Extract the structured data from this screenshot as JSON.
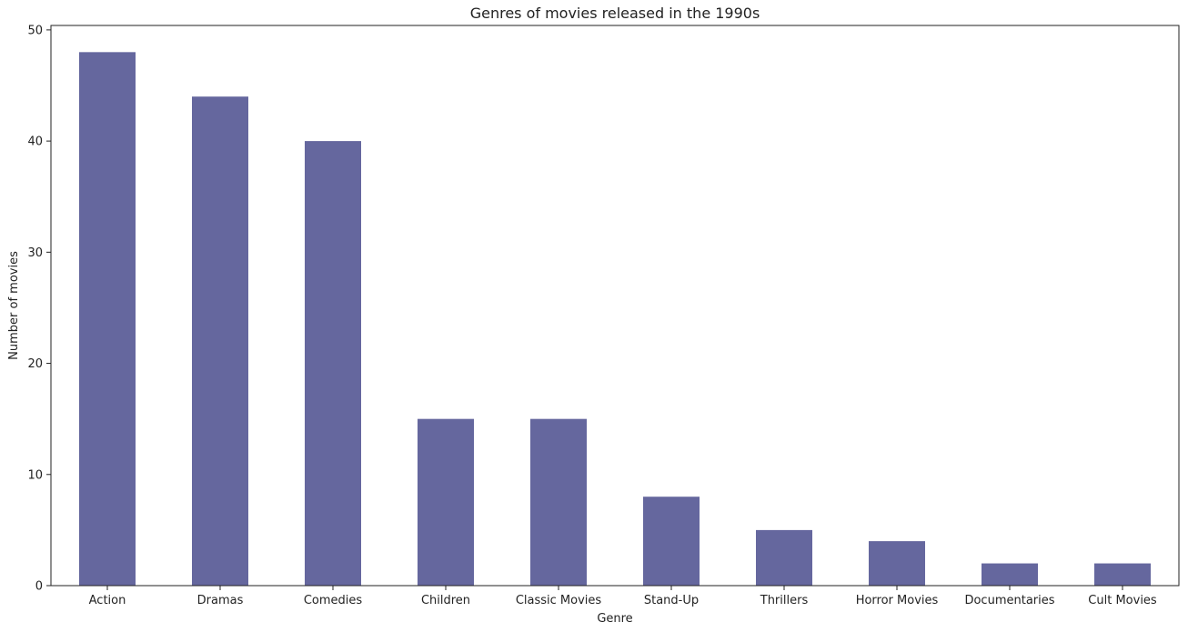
{
  "chart_data": {
    "type": "bar",
    "title": "Genres of movies released in the 1990s",
    "xlabel": "Genre",
    "ylabel": "Number of movies",
    "categories": [
      "Action",
      "Dramas",
      "Comedies",
      "Children",
      "Classic Movies",
      "Stand-Up",
      "Thrillers",
      "Horror Movies",
      "Documentaries",
      "Cult Movies"
    ],
    "values": [
      48,
      44,
      40,
      15,
      15,
      8,
      5,
      4,
      2,
      2
    ],
    "ylim": [
      0,
      50.4
    ],
    "yticks": [
      0,
      10,
      20,
      30,
      40,
      50
    ],
    "grid": false,
    "bar_color": "#65679e"
  }
}
